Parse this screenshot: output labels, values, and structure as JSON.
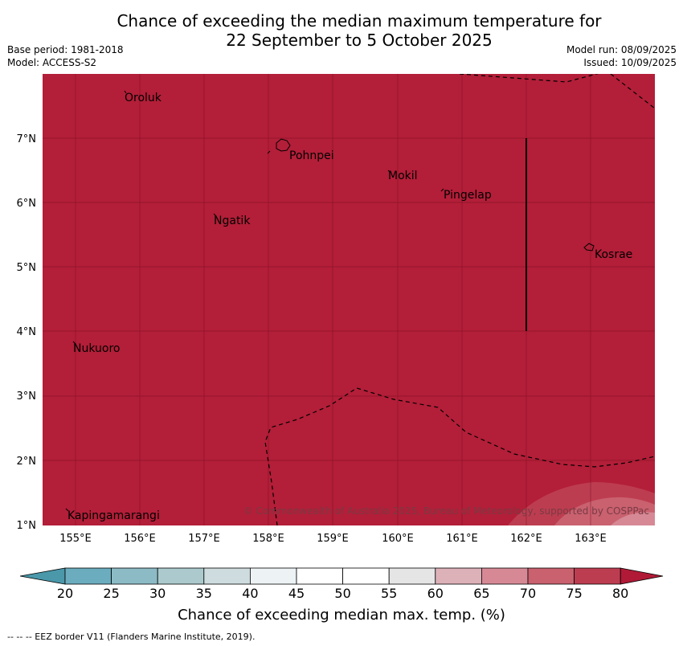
{
  "title_line1": "Chance of exceeding the median maximum temperature for",
  "title_line2": "22 September to 5 October 2025",
  "base_period": "Base period: 1981-2018",
  "model": "Model: ACCESS-S2",
  "model_run": "Model run: 08/09/2025",
  "issued": "Issued: 10/09/2025",
  "map": {
    "lon_range": [
      154.5,
      164.0
    ],
    "lat_range": [
      1.0,
      8.0
    ],
    "background_color": "#b31e38",
    "lon_ticks": [
      "155°E",
      "156°E",
      "157°E",
      "158°E",
      "159°E",
      "160°E",
      "161°E",
      "162°E",
      "163°E"
    ],
    "lat_ticks": [
      "1°N",
      "2°N",
      "3°N",
      "4°N",
      "5°N",
      "6°N",
      "7°N"
    ],
    "places": [
      "Oroluk",
      "Pohnpei",
      "Mokil",
      "Pingelap",
      "Ngatik",
      "Kosrae",
      "Nukuoro",
      "Kapingamarangi"
    ],
    "copyright": "© Commonwealth of Australia 2025, Bureau of Meteorology, supported by COSPPac"
  },
  "colorbar": {
    "labels": [
      "20",
      "25",
      "30",
      "35",
      "40",
      "45",
      "50",
      "55",
      "60",
      "65",
      "70",
      "75",
      "80"
    ],
    "colors": [
      "#4a98aa",
      "#6badbe",
      "#8cbbc6",
      "#accacd",
      "#cedcdf",
      "#edf2f5",
      "#ffffff",
      "#ffffff",
      "#e6e5e6",
      "#ddb1b8",
      "#d68995",
      "#c9616f",
      "#bd3d50",
      "#b01a36"
    ],
    "title": "Chance of exceeding median max. temp. (%)"
  },
  "footnote": "-- -- -- EEZ border V11 (Flanders Marine Institute, 2019)."
}
